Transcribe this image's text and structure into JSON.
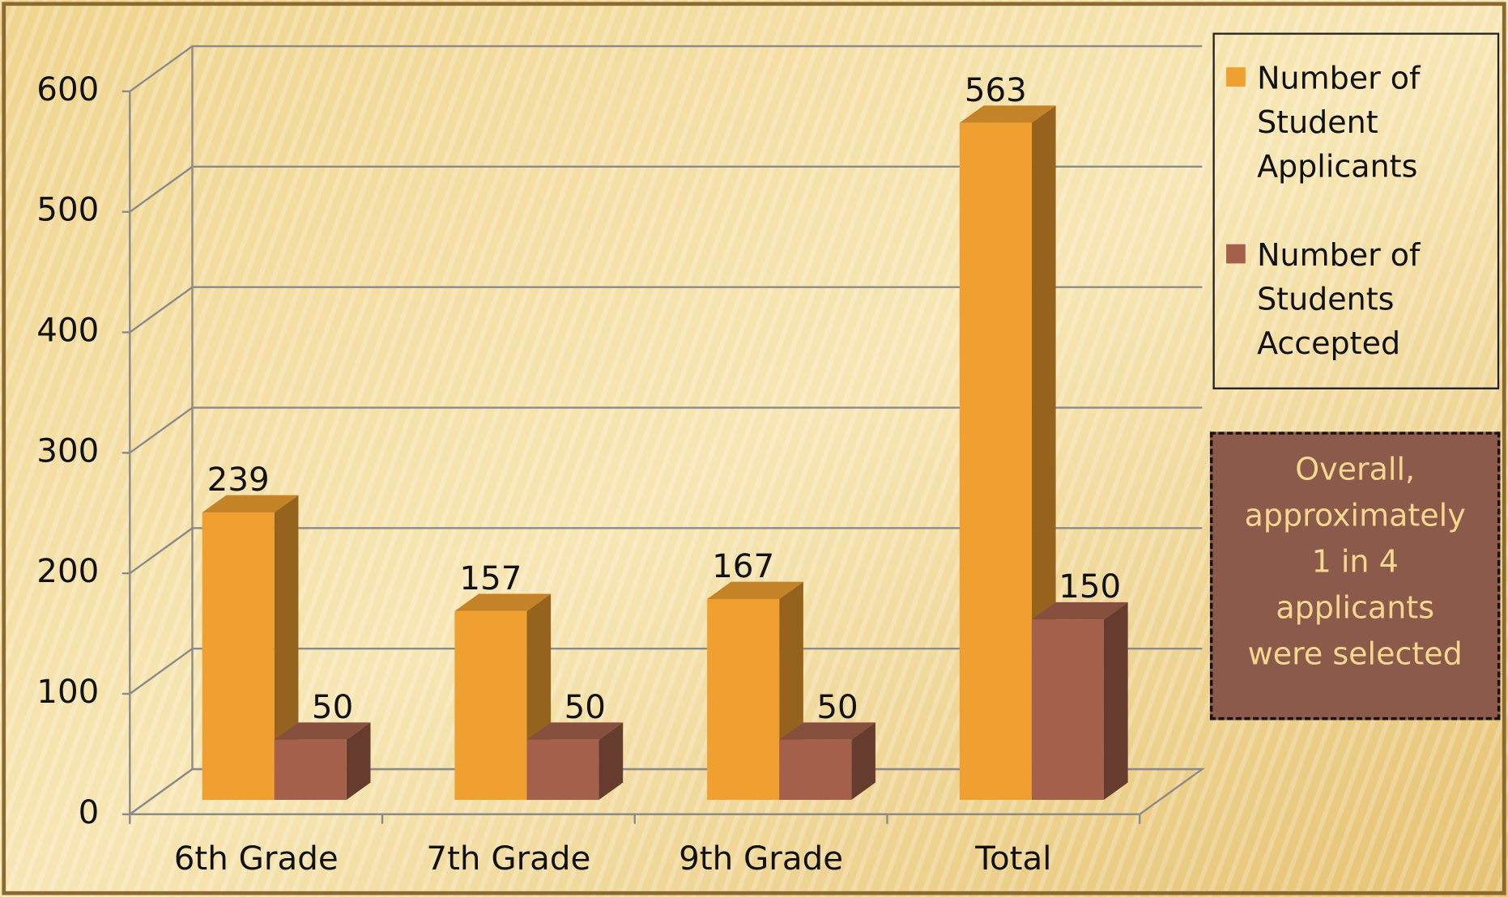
{
  "chart_data": {
    "type": "bar3d",
    "categories": [
      "6th Grade",
      "7th Grade",
      "9th Grade",
      "Total"
    ],
    "series": [
      {
        "name": "Number of Student Applicants",
        "color": "#f0a030",
        "values": [
          239,
          157,
          167,
          563
        ]
      },
      {
        "name": "Number of Students Accepted",
        "color": "#a5604c",
        "values": [
          50,
          50,
          50,
          150
        ]
      }
    ],
    "ylim": [
      0,
      600
    ],
    "yticks": [
      0,
      100,
      200,
      300,
      400,
      500,
      600
    ],
    "grid": true,
    "legend": "right",
    "annotation": "Overall, approximately 1 in 4 applicants were selected"
  }
}
